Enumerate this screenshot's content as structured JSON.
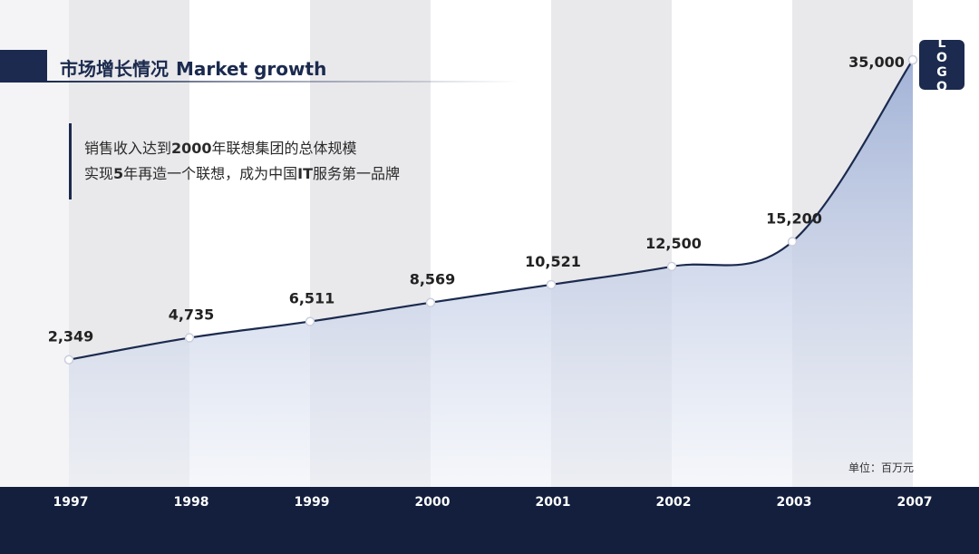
{
  "header": {
    "title_cn": "市场增长情况",
    "title_en": "Market growth"
  },
  "description": {
    "line1_prefix": "销售收入达到",
    "line1_bold": "2000",
    "line1_suffix": "年联想集团的总体规模",
    "line2_prefix": "实现",
    "line2_bold1": "5",
    "line2_mid": "年再造一个联想，成为中国",
    "line2_bold2": "IT",
    "line2_suffix": "服务第一品牌"
  },
  "logo": {
    "letters": [
      "L",
      "O",
      "G",
      "O"
    ]
  },
  "unit_label": "单位：百万元",
  "colors": {
    "navy": "#1b2a4e",
    "footer": "#131f3d",
    "area_top": "#9fb0d6",
    "area_bottom": "#eef1f8",
    "stripe": "#e9e9ec"
  },
  "chart_data": {
    "type": "area",
    "categories": [
      "1997",
      "1998",
      "1999",
      "2000",
      "2001",
      "2002",
      "2003",
      "2007"
    ],
    "values": [
      2349,
      4735,
      6511,
      8569,
      10521,
      12500,
      15200,
      35000
    ],
    "value_labels": [
      "2,349",
      "4,735",
      "6,511",
      "8,569",
      "10,521",
      "12,500",
      "15,200",
      "35,000"
    ],
    "ylim": [
      -11500,
      35000
    ],
    "grid": false,
    "legend": "none"
  }
}
